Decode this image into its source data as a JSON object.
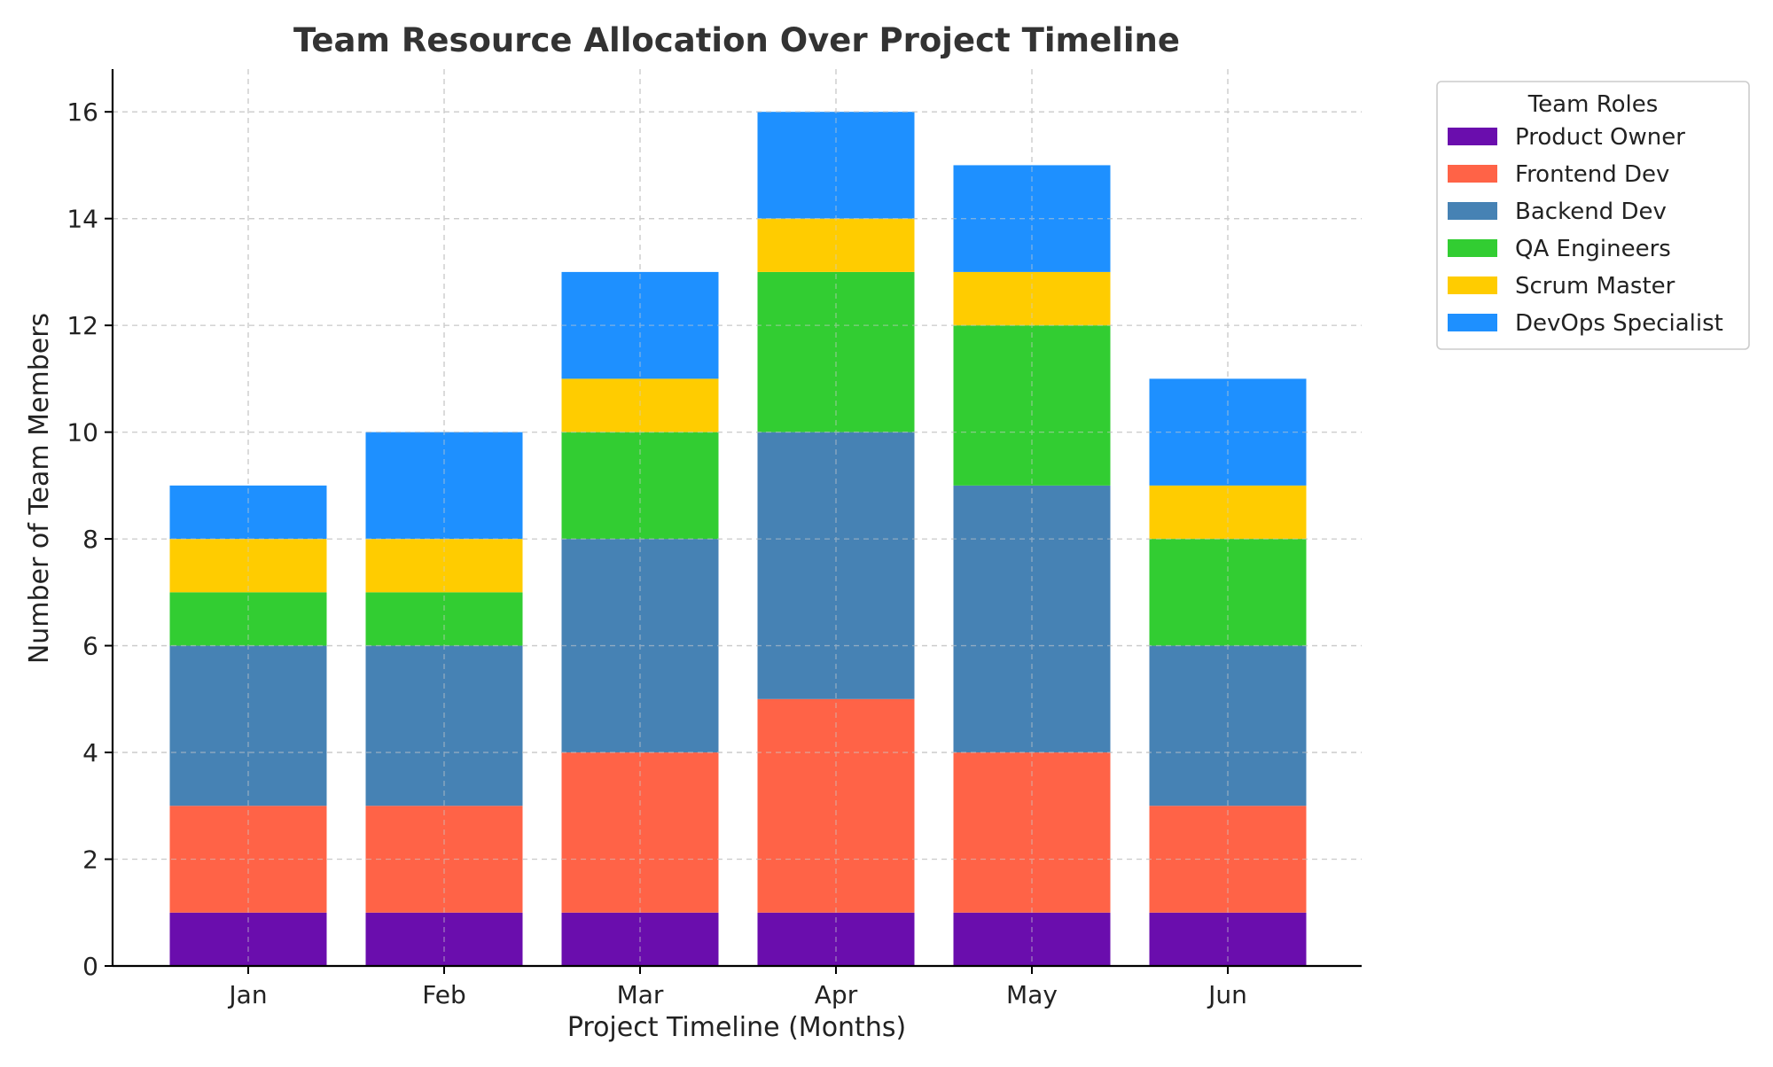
{
  "chart_data": {
    "type": "bar",
    "stacked": true,
    "title": "Team Resource Allocation Over Project Timeline",
    "xlabel": "Project Timeline (Months)",
    "ylabel": "Number of Team Members",
    "categories": [
      "Jan",
      "Feb",
      "Mar",
      "Apr",
      "May",
      "Jun"
    ],
    "ylim": [
      0,
      16.8
    ],
    "yticks": [
      0,
      2,
      4,
      6,
      8,
      10,
      12,
      14,
      16
    ],
    "grid": true,
    "legend": {
      "title": "Team Roles",
      "placement": "outside-top-right"
    },
    "series": [
      {
        "name": "Product Owner",
        "color": "#6a0dad",
        "values": [
          1,
          1,
          1,
          1,
          1,
          1
        ]
      },
      {
        "name": "Frontend Dev",
        "color": "#ff6347",
        "values": [
          2,
          2,
          3,
          4,
          3,
          2
        ]
      },
      {
        "name": "Backend Dev",
        "color": "#4682b4",
        "values": [
          3,
          3,
          4,
          5,
          5,
          3
        ]
      },
      {
        "name": "QA Engineers",
        "color": "#32cd32",
        "values": [
          1,
          1,
          2,
          3,
          3,
          2
        ]
      },
      {
        "name": "Scrum Master",
        "color": "#ffcc00",
        "values": [
          1,
          1,
          1,
          1,
          1,
          1
        ]
      },
      {
        "name": "DevOps Specialist",
        "color": "#1e90ff",
        "values": [
          1,
          2,
          2,
          2,
          2,
          2
        ]
      }
    ]
  }
}
